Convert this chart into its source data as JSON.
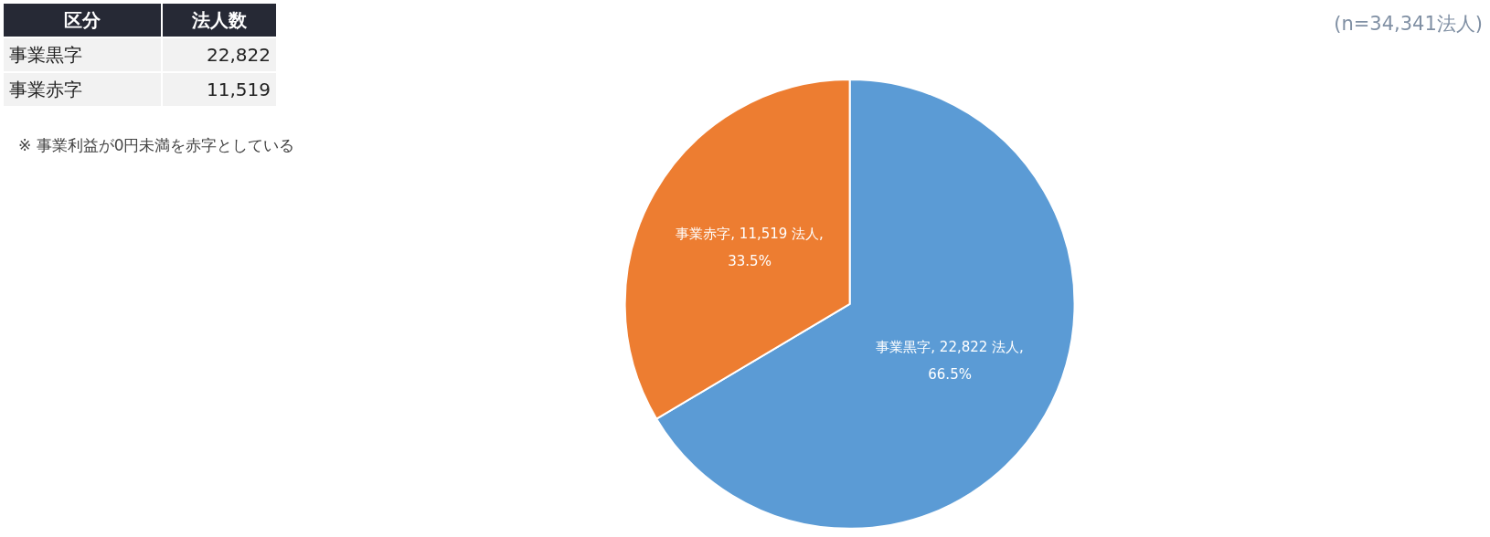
{
  "chart_data": [
    {
      "type": "other",
      "annotations": [
        "区分",
        "法人数",
        "事業黒字",
        "22,822",
        "事業赤字",
        "11,519",
        "※ 事業利益が0円未満を赤字としている"
      ]
    },
    {
      "type": "pie",
      "categories": [
        "事業黒字",
        "事業赤字"
      ],
      "values": [
        22822,
        11519
      ],
      "colors": [
        "#5b9bd5",
        "#ed7d31"
      ],
      "value_labels": [
        "22,822 法人,\n66.5%",
        "11,519 法人,\n33.5%"
      ],
      "annotations": [
        "(n=34,341法人)"
      ],
      "legend": false
    }
  ]
}
